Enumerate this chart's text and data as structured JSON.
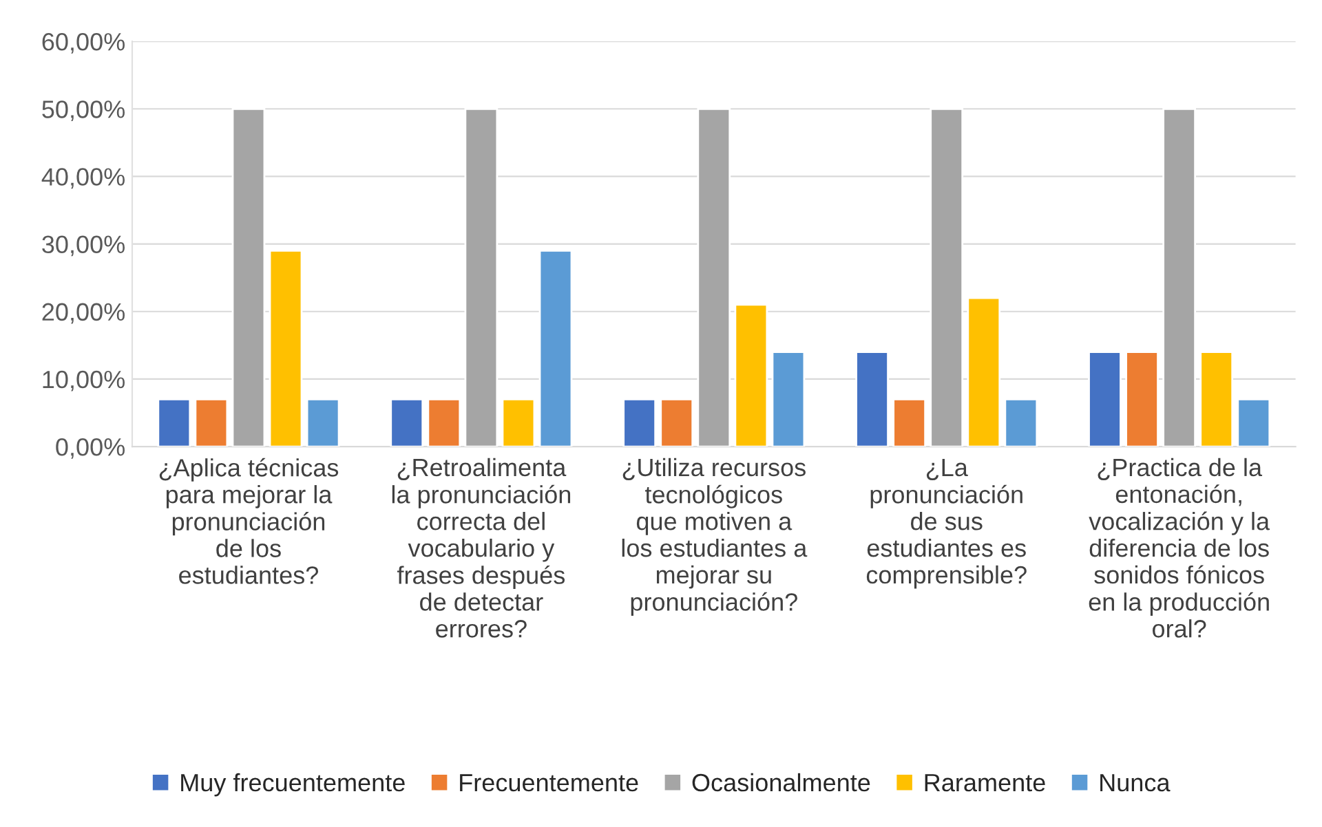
{
  "chart_data": {
    "type": "bar",
    "categories": [
      "¿Aplica técnicas\npara mejorar la\npronunciación\nde los\nestudiantes?",
      "¿Retroalimenta\nla pronunciación\ncorrecta del\nvocabulario y\nfrases después\nde detectar\nerrores?",
      "¿Utiliza recursos\ntecnológicos\nque motiven a\nlos estudiantes a\nmejorar su\npronunciación?",
      "¿La\npronunciación\nde sus\nestudiantes es\ncomprensible?",
      "¿Practica de la\nentonación,\nvocalización y la\ndiferencia de los\nsonidos fónicos\nen la producción\noral?"
    ],
    "series": [
      {
        "name": "Muy frecuentemente",
        "color": "#4472c4",
        "values": [
          7,
          7,
          7,
          14,
          14
        ]
      },
      {
        "name": "Frecuentemente",
        "color": "#ed7d31",
        "values": [
          7,
          7,
          7,
          7,
          14
        ]
      },
      {
        "name": "Ocasionalmente",
        "color": "#a5a5a5",
        "values": [
          50,
          50,
          50,
          50,
          50
        ]
      },
      {
        "name": "Raramente",
        "color": "#ffc000",
        "values": [
          29,
          7,
          21,
          22,
          14
        ]
      },
      {
        "name": "Nunca",
        "color": "#5b9bd5",
        "values": [
          7,
          29,
          14,
          7,
          7
        ]
      }
    ],
    "ylim": [
      0,
      60
    ],
    "yticks": [
      {
        "value": 0,
        "label": "0,00%"
      },
      {
        "value": 10,
        "label": "10,00%"
      },
      {
        "value": 20,
        "label": "20,00%"
      },
      {
        "value": 30,
        "label": "30,00%"
      },
      {
        "value": 40,
        "label": "40,00%"
      },
      {
        "value": 50,
        "label": "50,00%"
      },
      {
        "value": 60,
        "label": "60,00%"
      }
    ],
    "grid": "y",
    "legend": "bottom"
  }
}
